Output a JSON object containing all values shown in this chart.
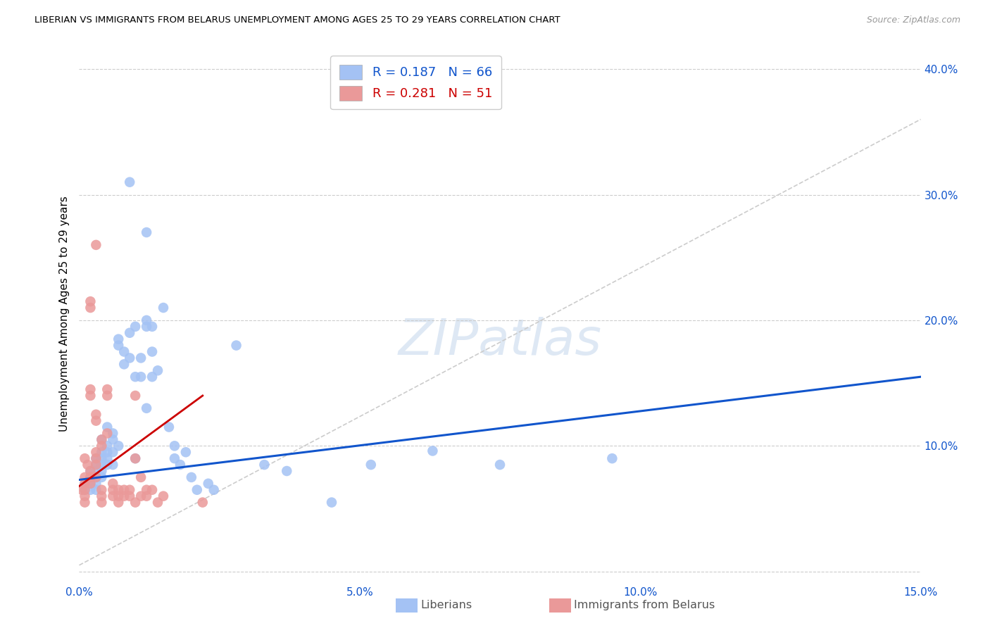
{
  "title": "LIBERIAN VS IMMIGRANTS FROM BELARUS UNEMPLOYMENT AMONG AGES 25 TO 29 YEARS CORRELATION CHART",
  "source": "Source: ZipAtlas.com",
  "xlabel_label": "Liberians",
  "xlabel_label2": "Immigrants from Belarus",
  "ylabel": "Unemployment Among Ages 25 to 29 years",
  "xlim": [
    0.0,
    0.15
  ],
  "ylim": [
    -0.01,
    0.42
  ],
  "xticks": [
    0.0,
    0.05,
    0.1,
    0.15
  ],
  "xticklabels": [
    "0.0%",
    "5.0%",
    "10.0%",
    "15.0%"
  ],
  "yticks": [
    0.0,
    0.1,
    0.2,
    0.3,
    0.4
  ],
  "yticklabels": [
    "",
    "10.0%",
    "20.0%",
    "30.0%",
    "40.0%"
  ],
  "legend_r1": "R = 0.187",
  "legend_n1": "N = 66",
  "legend_r2": "R = 0.281",
  "legend_n2": "N = 51",
  "blue_color": "#a4c2f4",
  "pink_color": "#ea9999",
  "line_blue": "#1155cc",
  "line_pink": "#cc0000",
  "diag_color": "#cccccc",
  "blue_scatter": [
    [
      0.001,
      0.07
    ],
    [
      0.001,
      0.065
    ],
    [
      0.002,
      0.075
    ],
    [
      0.002,
      0.08
    ],
    [
      0.002,
      0.07
    ],
    [
      0.002,
      0.065
    ],
    [
      0.003,
      0.08
    ],
    [
      0.003,
      0.075
    ],
    [
      0.003,
      0.085
    ],
    [
      0.003,
      0.07
    ],
    [
      0.003,
      0.065
    ],
    [
      0.003,
      0.09
    ],
    [
      0.004,
      0.09
    ],
    [
      0.004,
      0.085
    ],
    [
      0.004,
      0.095
    ],
    [
      0.004,
      0.08
    ],
    [
      0.004,
      0.075
    ],
    [
      0.004,
      0.105
    ],
    [
      0.005,
      0.1
    ],
    [
      0.005,
      0.095
    ],
    [
      0.005,
      0.115
    ],
    [
      0.005,
      0.09
    ],
    [
      0.005,
      0.085
    ],
    [
      0.006,
      0.11
    ],
    [
      0.006,
      0.105
    ],
    [
      0.006,
      0.095
    ],
    [
      0.006,
      0.085
    ],
    [
      0.007,
      0.1
    ],
    [
      0.007,
      0.18
    ],
    [
      0.007,
      0.185
    ],
    [
      0.008,
      0.175
    ],
    [
      0.008,
      0.165
    ],
    [
      0.009,
      0.31
    ],
    [
      0.009,
      0.19
    ],
    [
      0.009,
      0.17
    ],
    [
      0.01,
      0.195
    ],
    [
      0.01,
      0.155
    ],
    [
      0.01,
      0.09
    ],
    [
      0.011,
      0.17
    ],
    [
      0.011,
      0.155
    ],
    [
      0.012,
      0.27
    ],
    [
      0.012,
      0.13
    ],
    [
      0.012,
      0.195
    ],
    [
      0.012,
      0.2
    ],
    [
      0.013,
      0.175
    ],
    [
      0.013,
      0.195
    ],
    [
      0.013,
      0.155
    ],
    [
      0.014,
      0.16
    ],
    [
      0.015,
      0.21
    ],
    [
      0.016,
      0.115
    ],
    [
      0.017,
      0.09
    ],
    [
      0.017,
      0.1
    ],
    [
      0.018,
      0.085
    ],
    [
      0.019,
      0.095
    ],
    [
      0.02,
      0.075
    ],
    [
      0.021,
      0.065
    ],
    [
      0.023,
      0.07
    ],
    [
      0.024,
      0.065
    ],
    [
      0.028,
      0.18
    ],
    [
      0.033,
      0.085
    ],
    [
      0.037,
      0.08
    ],
    [
      0.045,
      0.055
    ],
    [
      0.052,
      0.085
    ],
    [
      0.063,
      0.096
    ],
    [
      0.075,
      0.085
    ],
    [
      0.095,
      0.09
    ]
  ],
  "pink_scatter": [
    [
      0.0005,
      0.065
    ],
    [
      0.001,
      0.075
    ],
    [
      0.001,
      0.07
    ],
    [
      0.001,
      0.065
    ],
    [
      0.001,
      0.06
    ],
    [
      0.001,
      0.055
    ],
    [
      0.001,
      0.09
    ],
    [
      0.0015,
      0.085
    ],
    [
      0.002,
      0.08
    ],
    [
      0.002,
      0.075
    ],
    [
      0.002,
      0.07
    ],
    [
      0.002,
      0.14
    ],
    [
      0.002,
      0.145
    ],
    [
      0.002,
      0.21
    ],
    [
      0.002,
      0.215
    ],
    [
      0.003,
      0.095
    ],
    [
      0.003,
      0.09
    ],
    [
      0.003,
      0.085
    ],
    [
      0.003,
      0.075
    ],
    [
      0.003,
      0.12
    ],
    [
      0.003,
      0.125
    ],
    [
      0.003,
      0.26
    ],
    [
      0.004,
      0.105
    ],
    [
      0.004,
      0.1
    ],
    [
      0.004,
      0.065
    ],
    [
      0.004,
      0.06
    ],
    [
      0.004,
      0.055
    ],
    [
      0.005,
      0.11
    ],
    [
      0.005,
      0.14
    ],
    [
      0.005,
      0.145
    ],
    [
      0.006,
      0.065
    ],
    [
      0.006,
      0.06
    ],
    [
      0.006,
      0.07
    ],
    [
      0.007,
      0.065
    ],
    [
      0.007,
      0.06
    ],
    [
      0.007,
      0.055
    ],
    [
      0.008,
      0.065
    ],
    [
      0.008,
      0.06
    ],
    [
      0.009,
      0.065
    ],
    [
      0.009,
      0.06
    ],
    [
      0.01,
      0.14
    ],
    [
      0.01,
      0.09
    ],
    [
      0.01,
      0.055
    ],
    [
      0.011,
      0.06
    ],
    [
      0.011,
      0.075
    ],
    [
      0.012,
      0.065
    ],
    [
      0.012,
      0.06
    ],
    [
      0.013,
      0.065
    ],
    [
      0.014,
      0.055
    ],
    [
      0.015,
      0.06
    ],
    [
      0.022,
      0.055
    ]
  ],
  "blue_trendline_x": [
    0.0,
    0.15
  ],
  "blue_trendline_y": [
    0.073,
    0.155
  ],
  "pink_trendline_x": [
    0.0,
    0.022
  ],
  "pink_trendline_y": [
    0.068,
    0.14
  ],
  "diag_line_x": [
    0.0,
    0.15
  ],
  "diag_line_y": [
    0.005,
    0.36
  ]
}
